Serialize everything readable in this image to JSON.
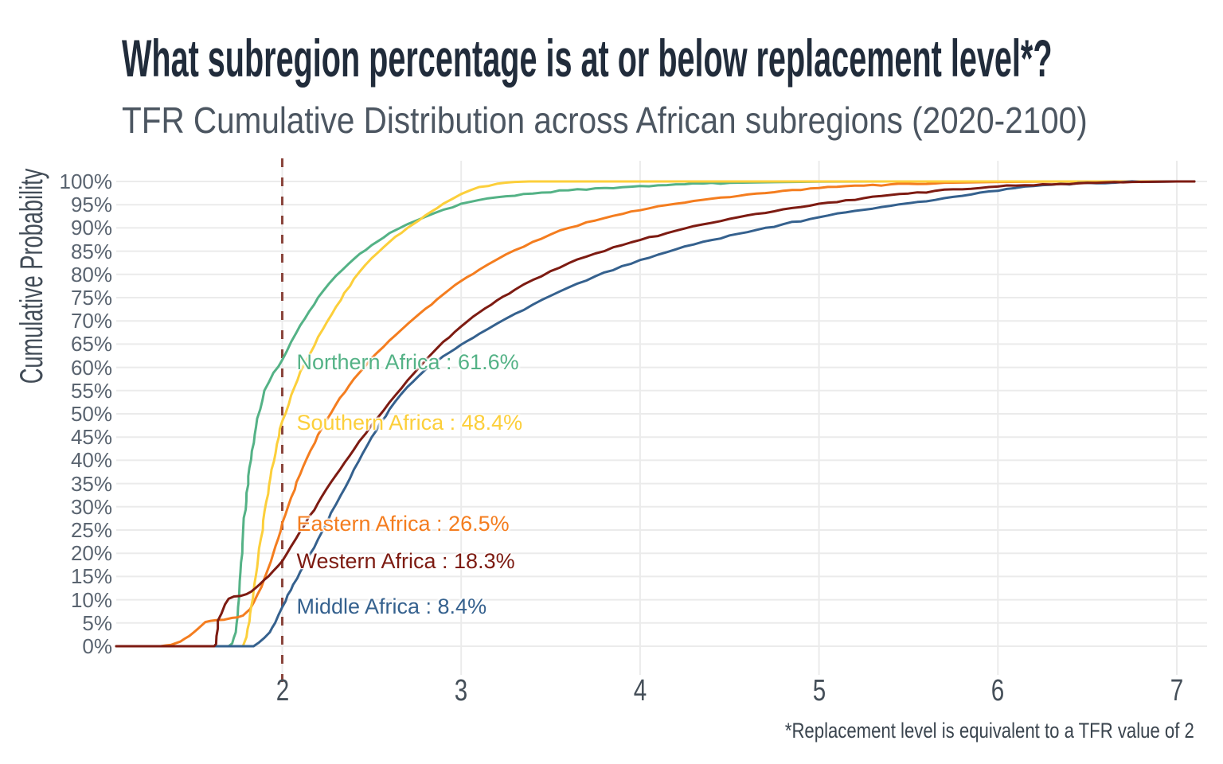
{
  "header": {
    "title": "What subregion percentage is at or below replacement level*?",
    "subtitle": "TFR Cumulative Distribution across African subregions (2020-2100)"
  },
  "footnote": {
    "text": "*Replacement level is equivalent to a TFR value of 2"
  },
  "colors": {
    "background": "#ffffff",
    "grid": "#ebebeb",
    "title": "#212c3b",
    "subtitle": "#4c5661",
    "axis_text": "#5a6470",
    "replacement_line": "#8a453c"
  },
  "chart_data": {
    "type": "line",
    "title": "What subregion percentage is at or below replacement level*?",
    "subtitle": "TFR Cumulative Distribution across African subregions (2020-2100)",
    "xlabel": "",
    "ylabel": "Cumulative Probability",
    "xlim": [
      1.07,
      7.1
    ],
    "ylim": [
      0,
      100
    ],
    "x_ticks": [
      2,
      3,
      4,
      5,
      6,
      7
    ],
    "y_ticks": [
      0,
      5,
      10,
      15,
      20,
      25,
      30,
      35,
      40,
      45,
      50,
      55,
      60,
      65,
      70,
      75,
      80,
      85,
      90,
      95,
      100
    ],
    "y_tick_suffix": "%",
    "grid": true,
    "legend_position": "direct-labels-on-chart",
    "replacement_line": {
      "x": 2,
      "style": "dashed",
      "color": "#8a453c"
    },
    "series": [
      {
        "name": "Northern Africa",
        "value_at_replacement_pct": 61.6,
        "color": "#54b286",
        "points": [
          [
            1.07,
            0
          ],
          [
            1.55,
            0
          ],
          [
            1.7,
            0
          ],
          [
            1.72,
            0.6
          ],
          [
            1.74,
            3
          ],
          [
            1.76,
            12
          ],
          [
            1.78,
            24
          ],
          [
            1.8,
            33
          ],
          [
            1.83,
            42
          ],
          [
            1.86,
            49
          ],
          [
            1.9,
            55
          ],
          [
            1.95,
            58.8
          ],
          [
            2.0,
            61.6
          ],
          [
            2.05,
            65.5
          ],
          [
            2.1,
            69
          ],
          [
            2.15,
            72
          ],
          [
            2.2,
            75
          ],
          [
            2.3,
            79.7
          ],
          [
            2.4,
            83.3
          ],
          [
            2.5,
            86.3
          ],
          [
            2.6,
            88.9
          ],
          [
            2.7,
            90.8
          ],
          [
            2.8,
            92.4
          ],
          [
            2.9,
            93.9
          ],
          [
            3.0,
            95.2
          ],
          [
            3.2,
            96.6
          ],
          [
            3.4,
            97.4
          ],
          [
            3.6,
            98.1
          ],
          [
            3.8,
            98.6
          ],
          [
            4.0,
            99
          ],
          [
            4.25,
            99.4
          ],
          [
            4.5,
            99.7
          ],
          [
            4.75,
            99.85
          ],
          [
            5.0,
            99.95
          ],
          [
            5.4,
            100
          ],
          [
            7.1,
            100
          ]
        ]
      },
      {
        "name": "Eastern Africa",
        "value_at_replacement_pct": 26.5,
        "color": "#f47d1f",
        "points": [
          [
            1.07,
            0
          ],
          [
            1.32,
            0
          ],
          [
            1.38,
            0.3
          ],
          [
            1.43,
            1
          ],
          [
            1.48,
            2.2
          ],
          [
            1.53,
            3.8
          ],
          [
            1.57,
            5.2
          ],
          [
            1.63,
            5.6
          ],
          [
            1.72,
            6.1
          ],
          [
            1.78,
            6.6
          ],
          [
            1.82,
            8
          ],
          [
            1.86,
            11
          ],
          [
            1.9,
            14.5
          ],
          [
            1.95,
            20
          ],
          [
            2.0,
            26.5
          ],
          [
            2.05,
            32
          ],
          [
            2.1,
            37
          ],
          [
            2.2,
            45.5
          ],
          [
            2.3,
            52
          ],
          [
            2.4,
            57.5
          ],
          [
            2.5,
            62
          ],
          [
            2.6,
            65.8
          ],
          [
            2.7,
            69.3
          ],
          [
            2.8,
            72.6
          ],
          [
            2.9,
            75.7
          ],
          [
            3.0,
            78.6
          ],
          [
            3.1,
            81
          ],
          [
            3.2,
            83.2
          ],
          [
            3.3,
            85.2
          ],
          [
            3.4,
            87
          ],
          [
            3.5,
            88.6
          ],
          [
            3.6,
            90
          ],
          [
            3.75,
            91.6
          ],
          [
            3.9,
            93
          ],
          [
            4.0,
            93.8
          ],
          [
            4.2,
            95.2
          ],
          [
            4.4,
            96.3
          ],
          [
            4.6,
            97.2
          ],
          [
            4.8,
            98
          ],
          [
            5.0,
            98.6
          ],
          [
            5.25,
            99.1
          ],
          [
            5.5,
            99.5
          ],
          [
            5.75,
            99.75
          ],
          [
            6.0,
            99.9
          ],
          [
            6.4,
            100
          ],
          [
            7.1,
            100
          ]
        ]
      },
      {
        "name": "Southern Africa",
        "value_at_replacement_pct": 48.4,
        "color": "#fccf3b",
        "points": [
          [
            1.07,
            0
          ],
          [
            1.62,
            0
          ],
          [
            1.78,
            0
          ],
          [
            1.8,
            2
          ],
          [
            1.82,
            7
          ],
          [
            1.84,
            12
          ],
          [
            1.86,
            17
          ],
          [
            1.88,
            23
          ],
          [
            1.91,
            31
          ],
          [
            1.94,
            38
          ],
          [
            1.97,
            43.5
          ],
          [
            2.0,
            48.4
          ],
          [
            2.05,
            54
          ],
          [
            2.1,
            59
          ],
          [
            2.2,
            66.5
          ],
          [
            2.3,
            73
          ],
          [
            2.4,
            79
          ],
          [
            2.5,
            83.5
          ],
          [
            2.6,
            87
          ],
          [
            2.7,
            90
          ],
          [
            2.8,
            92.7
          ],
          [
            2.9,
            95.2
          ],
          [
            3.0,
            97.3
          ],
          [
            3.1,
            98.8
          ],
          [
            3.2,
            99.5
          ],
          [
            3.3,
            99.9
          ],
          [
            3.38,
            100
          ],
          [
            7.1,
            100
          ]
        ]
      },
      {
        "name": "Middle Africa",
        "value_at_replacement_pct": 8.4,
        "color": "#35618e",
        "points": [
          [
            1.07,
            0
          ],
          [
            1.6,
            0
          ],
          [
            1.84,
            0
          ],
          [
            1.87,
            0.8
          ],
          [
            1.9,
            1.8
          ],
          [
            1.93,
            3
          ],
          [
            1.96,
            5
          ],
          [
            2.0,
            8.4
          ],
          [
            2.03,
            11
          ],
          [
            2.06,
            13.2
          ],
          [
            2.1,
            16
          ],
          [
            2.15,
            19.5
          ],
          [
            2.2,
            23
          ],
          [
            2.3,
            30.5
          ],
          [
            2.4,
            38
          ],
          [
            2.5,
            45
          ],
          [
            2.6,
            51
          ],
          [
            2.7,
            55.8
          ],
          [
            2.8,
            59.5
          ],
          [
            2.9,
            62.4
          ],
          [
            3.0,
            64.9
          ],
          [
            3.1,
            67.2
          ],
          [
            3.2,
            69.4
          ],
          [
            3.3,
            71.5
          ],
          [
            3.4,
            73.5
          ],
          [
            3.5,
            75.4
          ],
          [
            3.6,
            77.2
          ],
          [
            3.75,
            79.6
          ],
          [
            3.9,
            81.8
          ],
          [
            4.0,
            83.1
          ],
          [
            4.2,
            85.4
          ],
          [
            4.4,
            87.4
          ],
          [
            4.6,
            89.1
          ],
          [
            4.8,
            90.8
          ],
          [
            5.0,
            92.3
          ],
          [
            5.25,
            93.9
          ],
          [
            5.5,
            95.3
          ],
          [
            5.7,
            96.4
          ],
          [
            5.9,
            97.6
          ],
          [
            6.1,
            98.6
          ],
          [
            6.3,
            99.3
          ],
          [
            6.5,
            99.7
          ],
          [
            6.8,
            99.9
          ],
          [
            7.0,
            100
          ],
          [
            7.1,
            100
          ]
        ]
      },
      {
        "name": "Western Africa",
        "value_at_replacement_pct": 18.3,
        "color": "#7d1b12",
        "points": [
          [
            1.07,
            0
          ],
          [
            1.48,
            0
          ],
          [
            1.62,
            0
          ],
          [
            1.63,
            0.5
          ],
          [
            1.64,
            5.5
          ],
          [
            1.66,
            7
          ],
          [
            1.68,
            9
          ],
          [
            1.7,
            10.2
          ],
          [
            1.73,
            10.7
          ],
          [
            1.8,
            11.2
          ],
          [
            1.85,
            12.5
          ],
          [
            1.9,
            14.3
          ],
          [
            1.95,
            16.2
          ],
          [
            2.0,
            18.3
          ],
          [
            2.05,
            21.5
          ],
          [
            2.1,
            24.7
          ],
          [
            2.2,
            30.8
          ],
          [
            2.3,
            36.8
          ],
          [
            2.4,
            42.3
          ],
          [
            2.5,
            47.6
          ],
          [
            2.6,
            52.5
          ],
          [
            2.7,
            57.2
          ],
          [
            2.8,
            61.5
          ],
          [
            2.9,
            65.5
          ],
          [
            3.0,
            68.8
          ],
          [
            3.1,
            71.8
          ],
          [
            3.2,
            74.4
          ],
          [
            3.3,
            76.7
          ],
          [
            3.4,
            78.8
          ],
          [
            3.5,
            80.7
          ],
          [
            3.6,
            82.4
          ],
          [
            3.75,
            84.5
          ],
          [
            3.9,
            86.3
          ],
          [
            4.0,
            87.4
          ],
          [
            4.2,
            89.4
          ],
          [
            4.4,
            91.1
          ],
          [
            4.6,
            92.7
          ],
          [
            4.8,
            94
          ],
          [
            5.0,
            95.2
          ],
          [
            5.25,
            96.4
          ],
          [
            5.5,
            97.4
          ],
          [
            5.75,
            98.3
          ],
          [
            6.0,
            98.9
          ],
          [
            6.25,
            99.4
          ],
          [
            6.5,
            99.7
          ],
          [
            6.75,
            99.9
          ],
          [
            7.0,
            100
          ],
          [
            7.1,
            100
          ]
        ]
      }
    ],
    "annotations": [
      {
        "text": "Northern Africa : 61.6%",
        "color": "#54b286",
        "x": 2.08,
        "y": 61.2
      },
      {
        "text": "Southern Africa : 48.4%",
        "color": "#fccf3b",
        "x": 2.08,
        "y": 48.2
      },
      {
        "text": "Eastern Africa : 26.5%",
        "color": "#f47d1f",
        "x": 2.08,
        "y": 26.4
      },
      {
        "text": "Western Africa : 18.3%",
        "color": "#7d1b12",
        "x": 2.08,
        "y": 18.3
      },
      {
        "text": "Middle Africa : 8.4%",
        "color": "#35618e",
        "x": 2.08,
        "y": 8.5
      }
    ]
  }
}
